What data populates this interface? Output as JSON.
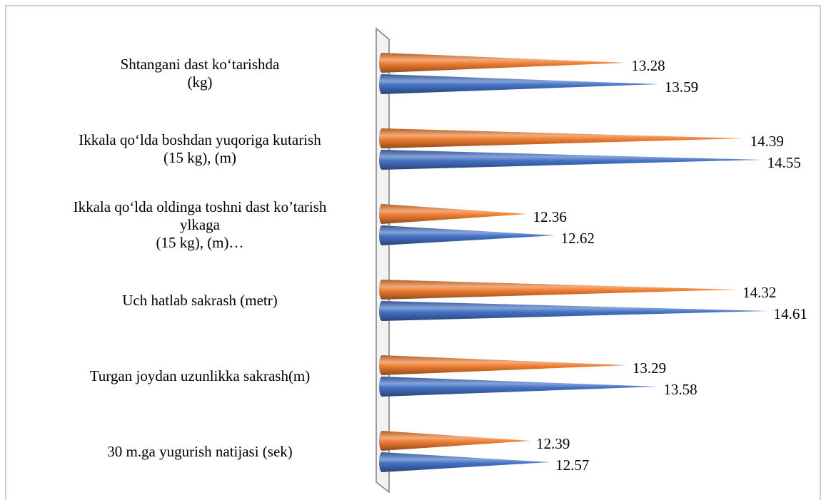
{
  "chart_data": {
    "type": "cone-bar",
    "categories": [
      "Shtangani dast ko‘tarishda\n(kg)",
      "Ikkala qo‘lda boshdan yuqoriga kutarish\n(15 kg), (m)",
      "Ikkala qo‘lda oldinga toshni dast ko’tarish\nylkaga\n(15 kg), (m)…",
      "Uch hatlab sakrash (metr)",
      "Turgan joydan uzunlikka sakrash(m)",
      "30 m.ga yugurish natijasi (sek)"
    ],
    "series": [
      {
        "color": "#ed7d31",
        "values": [
          13.28,
          14.39,
          12.36,
          14.32,
          13.29,
          12.39
        ]
      },
      {
        "color": "#4472c4",
        "values": [
          13.59,
          14.55,
          12.62,
          14.61,
          13.58,
          12.57
        ]
      }
    ],
    "xlim": [
      11,
      15
    ]
  }
}
